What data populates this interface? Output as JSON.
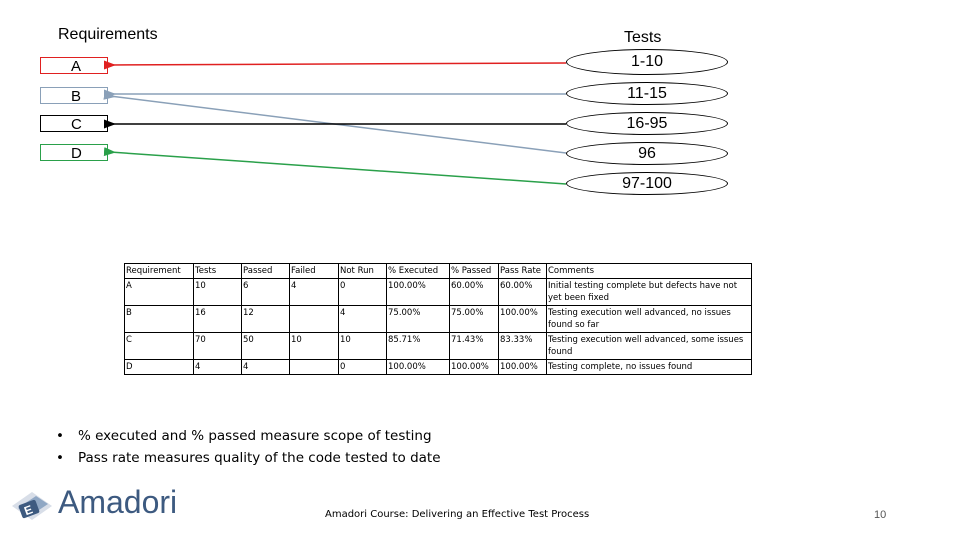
{
  "requirements": {
    "title": "Requirements",
    "items": [
      {
        "label": "A",
        "color": "#e02020"
      },
      {
        "label": "B",
        "color": "#8aa0b8"
      },
      {
        "label": "C",
        "color": "#000000"
      },
      {
        "label": "D",
        "color": "#2aa04a"
      }
    ]
  },
  "tests": {
    "title": "Tests",
    "items": [
      "1-10",
      "11-15",
      "16-95",
      "96",
      "97-100"
    ]
  },
  "table": {
    "headers": [
      "Requirement",
      "Tests",
      "Passed",
      "Failed",
      "Not Run",
      "% Executed",
      "% Passed",
      "Pass Rate",
      "Comments"
    ],
    "rows": [
      [
        "A",
        "10",
        "6",
        "4",
        "0",
        "100.00%",
        "60.00%",
        "60.00%",
        "Initial testing complete but defects have not yet been fixed"
      ],
      [
        "B",
        "16",
        "12",
        "",
        "4",
        "75.00%",
        "75.00%",
        "100.00%",
        "Testing execution well advanced, no issues found so far"
      ],
      [
        "C",
        "70",
        "50",
        "10",
        "10",
        "85.71%",
        "71.43%",
        "83.33%",
        "Testing execution well advanced, some issues found"
      ],
      [
        "D",
        "4",
        "4",
        "",
        "0",
        "100.00%",
        "100.00%",
        "100.00%",
        "Testing complete, no issues found"
      ]
    ]
  },
  "bullets": [
    "% executed and % passed measure scope of testing",
    "Pass rate measures quality of the code tested to date"
  ],
  "brand": "Amadori",
  "footer": "Amadori Course: Delivering an Effective Test Process",
  "page_number": "10"
}
